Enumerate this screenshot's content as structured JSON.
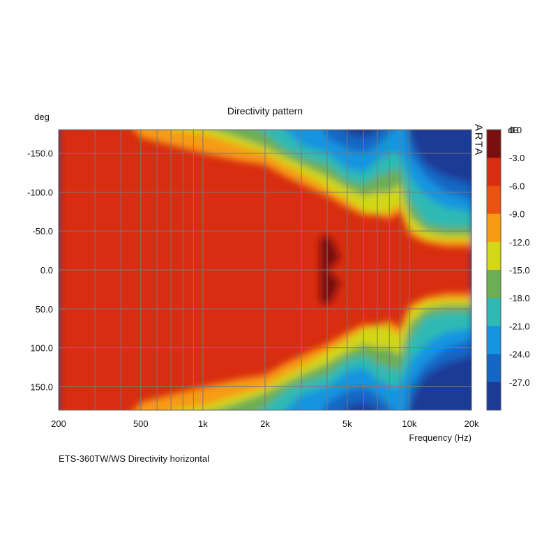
{
  "chart_data": {
    "type": "heatmap",
    "title": "Directivity pattern",
    "caption": "ETS-360TW/WS  Directivity horizontal",
    "xlabel": "Frequency (Hz)",
    "ylabel": "deg",
    "x_scale": "log",
    "xlim": [
      200,
      20000
    ],
    "ylim": [
      -180,
      180
    ],
    "x_ticks": [
      200,
      500,
      1000,
      2000,
      5000,
      10000,
      20000
    ],
    "x_tick_labels": [
      "200",
      "500",
      "1k",
      "2k",
      "5k",
      "10k",
      "20k"
    ],
    "x_gridlines": [
      200,
      300,
      400,
      500,
      600,
      700,
      800,
      900,
      1000,
      2000,
      3000,
      4000,
      5000,
      6000,
      7000,
      8000,
      9000,
      10000,
      20000
    ],
    "y_ticks": [
      -150,
      -100,
      -50,
      0,
      50,
      100,
      150
    ],
    "y_tick_labels": [
      "-150.0",
      "-100.0",
      "-50.0",
      "0.0",
      "50.0",
      "100.0",
      "150.0"
    ],
    "grid": true,
    "watermark": "ARTA",
    "colorbar": {
      "unit": "dB",
      "tick_labels": [
        "0.0",
        "-3.0",
        "-6.0",
        "-9.0",
        "-12.0",
        "-15.0",
        "-18.0",
        "-21.0",
        "-24.0",
        "-27.0"
      ],
      "colors": [
        "#7a0f0f",
        "#d82d10",
        "#ea5212",
        "#f79a14",
        "#d2d718",
        "#6cae54",
        "#2fb9b4",
        "#1594e0",
        "#1466c4",
        "#1d3a96"
      ]
    },
    "approx_beamwidth_at_-6dB_deg": {
      "200": 180,
      "500": 160,
      "1000": 130,
      "2000": 110,
      "4000": 75,
      "5000": 60,
      "8000": 50,
      "10000": 25,
      "20000": 20
    }
  }
}
